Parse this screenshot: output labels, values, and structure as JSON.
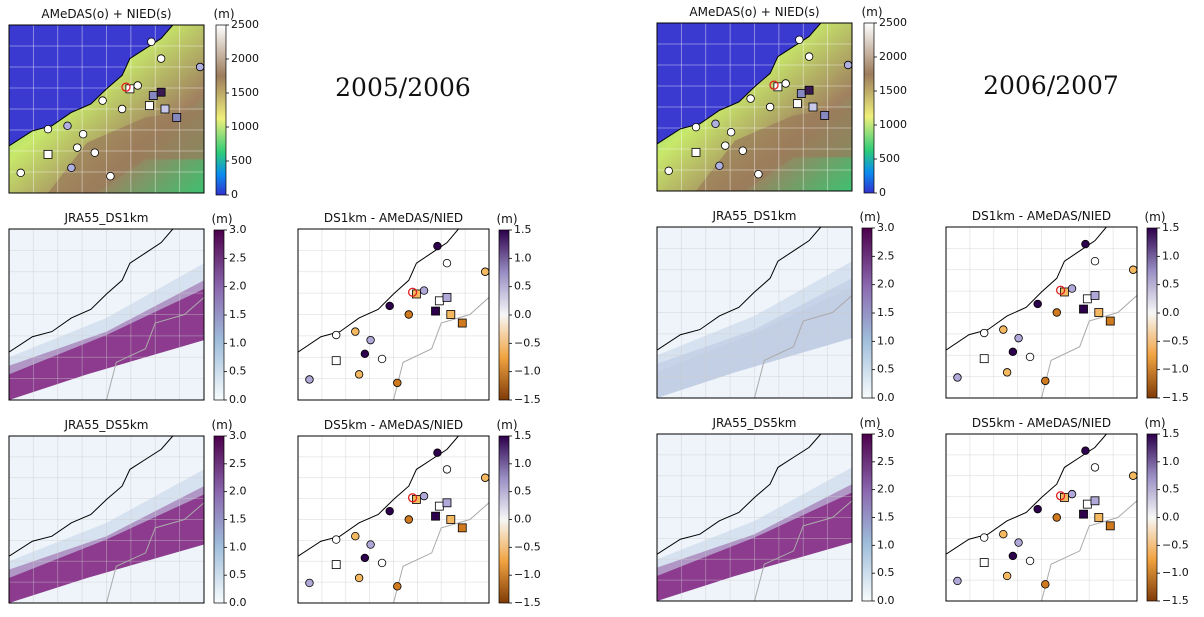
{
  "figures": [
    {
      "season": "2005/2006",
      "panels": [
        {
          "title": "AMeDAS(o) + NIED(s)",
          "unit": "(m)",
          "ticks": [
            "2500",
            "2000",
            "1500",
            "1000",
            "500",
            "0"
          ]
        },
        {
          "title": "JRA55_DS1km",
          "unit": "(m)",
          "ticks": [
            "3.0",
            "2.5",
            "2.0",
            "1.5",
            "1.0",
            "0.5",
            "0.0"
          ]
        },
        {
          "title": "DS1km - AMeDAS/NIED",
          "unit": "(m)",
          "ticks": [
            "1.5",
            "1.0",
            "0.5",
            "0.0",
            "−0.5",
            "−1.0",
            "−1.5"
          ]
        },
        {
          "title": "JRA55_DS5km",
          "unit": "(m)",
          "ticks": [
            "3.0",
            "2.5",
            "2.0",
            "1.5",
            "1.0",
            "0.5",
            "0.0"
          ]
        },
        {
          "title": "DS5km - AMeDAS/NIED",
          "unit": "(m)",
          "ticks": [
            "1.5",
            "1.0",
            "0.5",
            "0.0",
            "−0.5",
            "−1.0",
            "−1.5"
          ]
        }
      ]
    },
    {
      "season": "2006/2007",
      "panels": [
        {
          "title": "AMeDAS(o) + NIED(s)",
          "unit": "(m)",
          "ticks": [
            "2500",
            "2000",
            "1500",
            "1000",
            "500",
            "0"
          ]
        },
        {
          "title": "JRA55_DS1km",
          "unit": "(m)",
          "ticks": [
            "3.0",
            "2.5",
            "2.0",
            "1.5",
            "1.0",
            "0.5",
            "0.0"
          ]
        },
        {
          "title": "DS1km - AMeDAS/NIED",
          "unit": "(m)",
          "ticks": [
            "1.5",
            "1.0",
            "0.5",
            "0.0",
            "−0.5",
            "−1.0",
            "−1.5"
          ]
        },
        {
          "title": "JRA55_DS5km",
          "unit": "(m)",
          "ticks": [
            "3.0",
            "2.5",
            "2.0",
            "1.5",
            "1.0",
            "0.5",
            "0.0"
          ]
        },
        {
          "title": "DS5km - AMeDAS/NIED",
          "unit": "(m)",
          "ticks": [
            "1.5",
            "1.0",
            "0.5",
            "0.0",
            "−0.5",
            "−1.0",
            "−1.5"
          ]
        }
      ]
    }
  ]
}
